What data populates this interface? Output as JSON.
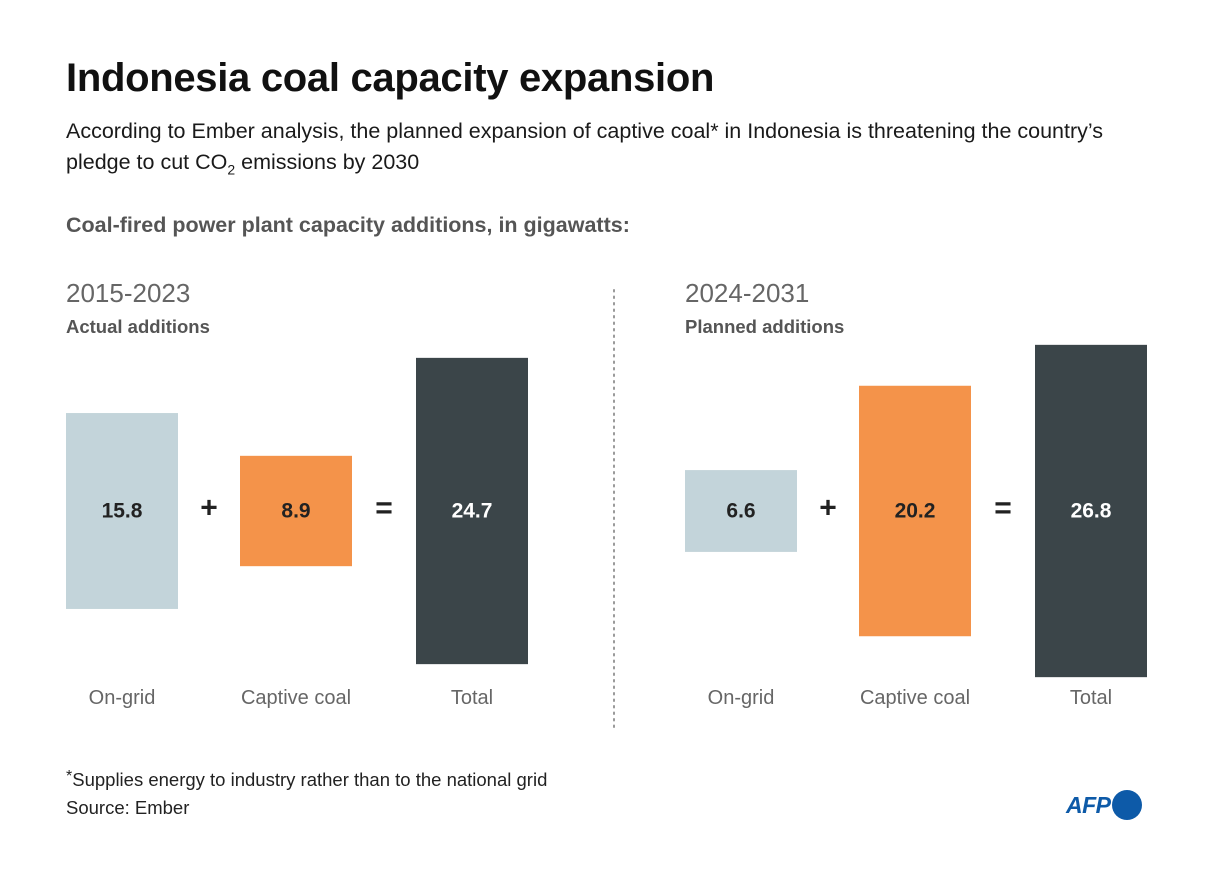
{
  "title": "Indonesia coal capacity expansion",
  "subtitle": {
    "before_sub": "According to Ember analysis, the planned expansion of captive coal* in Indonesia is threatening the country’s pledge to cut CO",
    "sub": "2",
    "after_sub": " emissions by 2030"
  },
  "chart_heading": "Coal-fired power plant capacity additions, in gigawatts:",
  "colors": {
    "on_grid": "#c3d4da",
    "captive_coal": "#f4934a",
    "total": "#3b4549",
    "divider": "#999999",
    "logo": "#0d5aa8"
  },
  "chart_data": {
    "type": "bar",
    "unit": "gigawatts",
    "categories": [
      "On-grid",
      "Captive coal",
      "Total"
    ],
    "operators": [
      "+",
      "="
    ],
    "periods": [
      {
        "label": "2015-2023",
        "sublabel": "Actual additions",
        "values": [
          15.8,
          8.9,
          24.7
        ],
        "value_labels": [
          "15.8",
          "8.9",
          "24.7"
        ]
      },
      {
        "label": "2024-2031",
        "sublabel": "Planned additions",
        "values": [
          6.6,
          20.2,
          26.8
        ],
        "value_labels": [
          "6.6",
          "20.2",
          "26.8"
        ]
      }
    ]
  },
  "footnote": {
    "star": "*",
    "text": "Supplies energy to industry rather than to the national grid"
  },
  "source": "Source: Ember",
  "logo": {
    "text": "AFP",
    "icon": "afp-dot-icon"
  }
}
